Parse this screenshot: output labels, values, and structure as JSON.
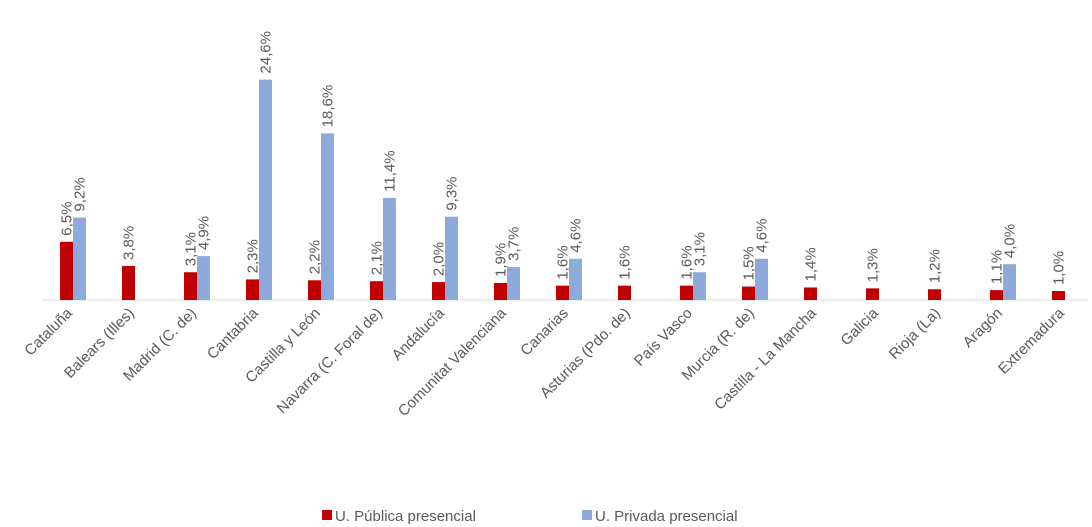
{
  "chart_data": {
    "type": "bar",
    "categories": [
      "Cataluña",
      "Balears (Illes)",
      "Madrid (C. de)",
      "Cantabria",
      "Castilla y León",
      "Navarra (C. Foral de)",
      "Andalucía",
      "Comunitat Valenciana",
      "Canarias",
      "Asturias (Pdo. de)",
      "País Vasco",
      "Murcia (R. de)",
      "Castilla - La Mancha",
      "Galicia",
      "Rioja (La)",
      "Aragón",
      "Extremadura"
    ],
    "series": [
      {
        "name": "U. Pública presencial",
        "color": "#c00000",
        "values": [
          6.5,
          3.8,
          3.1,
          2.3,
          2.2,
          2.1,
          2.0,
          1.9,
          1.6,
          1.6,
          1.6,
          1.5,
          1.4,
          1.3,
          1.2,
          1.1,
          1.0
        ],
        "value_labels": [
          "6,5%",
          "3,8%",
          "3,1%",
          "2,3%",
          "2,2%",
          "2,1%",
          "2,0%",
          "1,9%",
          "1,6%",
          "1,6%",
          "1,6%",
          "1,5%",
          "1,4%",
          "1,3%",
          "1,2%",
          "1,1%",
          "1,0%"
        ]
      },
      {
        "name": "U. Privada presencial",
        "color": "#8eaadb",
        "values": [
          9.2,
          null,
          4.9,
          24.6,
          18.6,
          11.4,
          9.3,
          3.7,
          4.6,
          null,
          3.1,
          4.6,
          null,
          null,
          null,
          4.0,
          null
        ],
        "value_labels": [
          "9,2%",
          null,
          "4,9%",
          "24,6%",
          "18,6%",
          "11,4%",
          "9,3%",
          "3,7%",
          "4,6%",
          null,
          "3,1%",
          "4,6%",
          null,
          null,
          null,
          "4,0%",
          null
        ]
      }
    ],
    "ylim": [
      0,
      25
    ],
    "legend": "bottom"
  }
}
